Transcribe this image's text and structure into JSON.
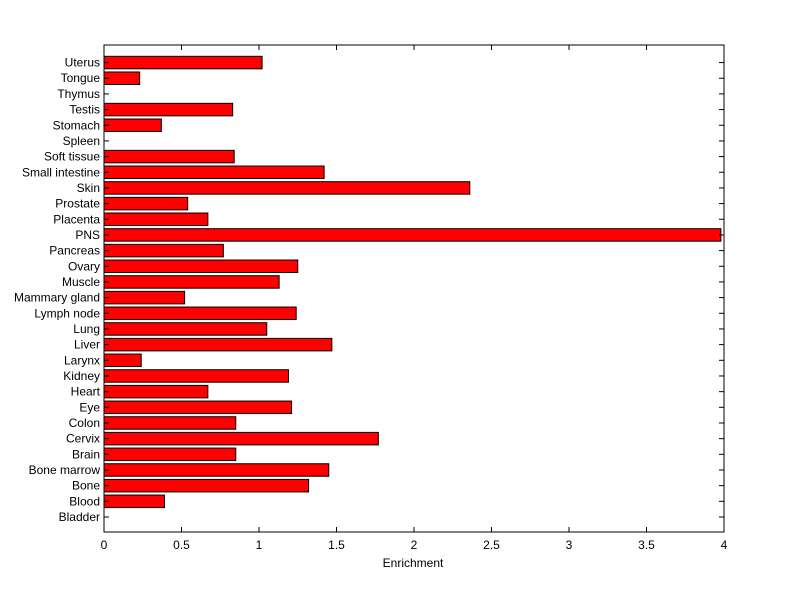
{
  "chart_data": {
    "type": "bar",
    "orientation": "horizontal",
    "xlabel": "Enrichment",
    "ylabel": "",
    "title": "",
    "xlim": [
      0,
      4
    ],
    "x_ticks": [
      "0",
      "0.5",
      "1",
      "1.5",
      "2",
      "2.5",
      "3",
      "3.5",
      "4"
    ],
    "grid": false,
    "bar_color": "#ff0000",
    "bar_edge_color": "#000000",
    "categories": [
      "Bladder",
      "Blood",
      "Bone",
      "Bone marrow",
      "Brain",
      "Cervix",
      "Colon",
      "Eye",
      "Heart",
      "Kidney",
      "Larynx",
      "Liver",
      "Lung",
      "Lymph node",
      "Mammary gland",
      "Muscle",
      "Ovary",
      "Pancreas",
      "PNS",
      "Placenta",
      "Prostate",
      "Skin",
      "Small intestine",
      "Soft tissue",
      "Spleen",
      "Stomach",
      "Testis",
      "Thymus",
      "Tongue",
      "Uterus"
    ],
    "values": [
      0,
      0.39,
      1.32,
      1.45,
      0.85,
      1.77,
      0.85,
      1.21,
      0.67,
      1.19,
      0.24,
      1.47,
      1.05,
      1.24,
      0.52,
      1.13,
      1.25,
      0.77,
      3.98,
      0.67,
      0.54,
      2.36,
      1.42,
      0.84,
      0,
      0.37,
      0.83,
      0,
      0.23,
      1.02
    ]
  }
}
